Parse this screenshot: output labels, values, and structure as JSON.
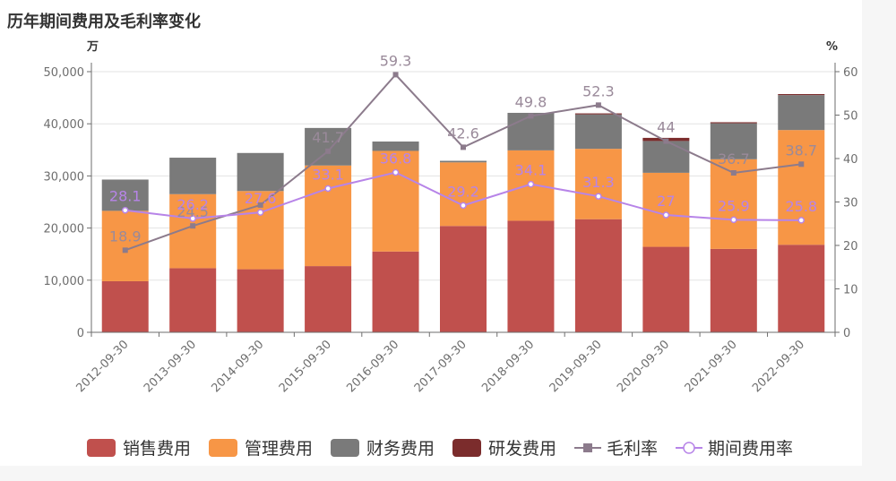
{
  "chart_data": {
    "type": "bar",
    "title": "历年期间费用及毛利率变化",
    "left_unit": "万",
    "right_unit": "%",
    "categories": [
      "2012-09-30",
      "2013-09-30",
      "2014-09-30",
      "2015-09-30",
      "2016-09-30",
      "2017-09-30",
      "2018-09-30",
      "2019-09-30",
      "2020-09-30",
      "2021-09-30",
      "2022-09-30"
    ],
    "left_axis": {
      "min": 0,
      "max": 50000,
      "ticks": [
        "0",
        "10,000",
        "20,000",
        "30,000",
        "40,000",
        "50,000"
      ]
    },
    "right_axis": {
      "min": 0,
      "max": 60,
      "ticks": [
        "0",
        "10",
        "20",
        "30",
        "40",
        "50",
        "60"
      ]
    },
    "series": [
      {
        "name": "销售费用",
        "kind": "bar",
        "color": "#c0504d",
        "values": [
          9800,
          12300,
          12100,
          12700,
          15500,
          20400,
          21400,
          21700,
          16400,
          16000,
          16800
        ]
      },
      {
        "name": "管理费用",
        "kind": "bar",
        "color": "#f79646",
        "values": [
          13500,
          14200,
          15000,
          19300,
          19300,
          12200,
          13500,
          13500,
          14200,
          17200,
          22000
        ]
      },
      {
        "name": "财务费用",
        "kind": "bar",
        "color": "#7a7a7a",
        "values": [
          6000,
          7000,
          7300,
          7200,
          1800,
          300,
          7200,
          6600,
          6100,
          6900,
          6700
        ]
      },
      {
        "name": "研发费用",
        "kind": "bar",
        "color": "#7b2c2c",
        "values": [
          0,
          0,
          0,
          0,
          0,
          0,
          0,
          200,
          600,
          200,
          200
        ]
      },
      {
        "name": "毛利率",
        "kind": "line",
        "axis": "right",
        "color": "#8c7b8c",
        "marker": "square",
        "values": [
          18.9,
          24.5,
          29.3,
          41.7,
          59.3,
          42.6,
          49.8,
          52.3,
          44,
          36.7,
          38.7
        ],
        "labels": [
          "18.9",
          "24.5",
          "",
          "41.7",
          "59.3",
          "42.6",
          "49.8",
          "52.3",
          "44",
          "36.7",
          "38.7"
        ]
      },
      {
        "name": "期间费用率",
        "kind": "line",
        "axis": "right",
        "color": "#b784e8",
        "marker": "circle",
        "values": [
          28.1,
          26.2,
          27.6,
          33.1,
          36.8,
          29.2,
          34.1,
          31.3,
          27,
          25.9,
          25.8
        ],
        "labels": [
          "28.1",
          "26.2",
          "27.6",
          "33.1",
          "36.8",
          "29.2",
          "34.1",
          "31.3",
          "27",
          "25.9",
          "25.8"
        ]
      }
    ],
    "legend_position": "bottom",
    "grid": true
  }
}
